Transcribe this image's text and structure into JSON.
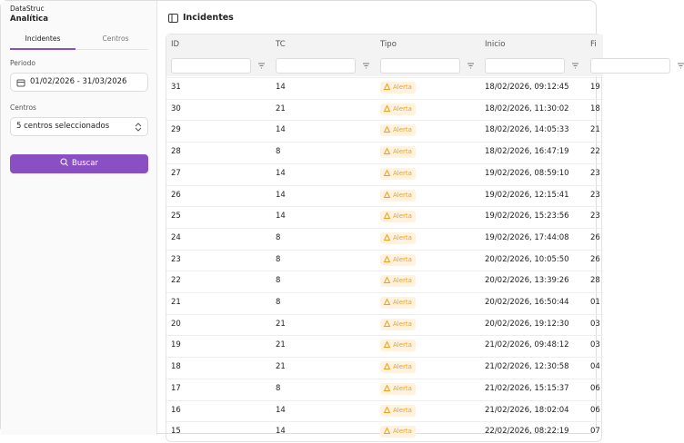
{
  "sidebar": {
    "brand": "DataStruc",
    "subtitle": "Analítica",
    "tabs": [
      "Incidentes",
      "Centros"
    ],
    "period_label": "Periodo",
    "period_value": "01/02/2026 - 31/03/2026",
    "centers_label": "Centros",
    "centers_value": "5 centros seleccionados",
    "button": "Buscar"
  },
  "main": {
    "title": "Incidentes"
  },
  "table": {
    "headers": [
      "ID",
      "TC",
      "Tipo",
      "Inicio",
      "Fi"
    ],
    "rows": [
      [
        31,
        14,
        "Alerta",
        "18/02/2026, 09:12:45",
        "19"
      ],
      [
        30,
        21,
        "Alerta",
        "18/02/2026, 11:30:02",
        "18"
      ],
      [
        29,
        14,
        "Alerta",
        "18/02/2026, 14:05:33",
        "21"
      ],
      [
        28,
        8,
        "Alerta",
        "18/02/2026, 16:47:19",
        "22"
      ],
      [
        27,
        14,
        "Alerta",
        "19/02/2026, 08:59:10",
        "23"
      ],
      [
        26,
        14,
        "Alerta",
        "19/02/2026, 12:15:41",
        "23"
      ],
      [
        25,
        14,
        "Alerta",
        "19/02/2026, 15:23:56",
        "23"
      ],
      [
        24,
        8,
        "Alerta",
        "19/02/2026, 17:44:08",
        "26"
      ],
      [
        23,
        8,
        "Alerta",
        "20/02/2026, 10:05:50",
        "26"
      ],
      [
        22,
        8,
        "Alerta",
        "20/02/2026, 13:39:26",
        "28"
      ],
      [
        21,
        8,
        "Alerta",
        "20/02/2026, 16:50:44",
        "01"
      ],
      [
        20,
        21,
        "Alerta",
        "20/02/2026, 19:12:30",
        "03"
      ],
      [
        19,
        21,
        "Alerta",
        "21/02/2026, 09:48:12",
        "03"
      ],
      [
        18,
        21,
        "Alerta",
        "21/02/2026, 12:30:58",
        "04"
      ],
      [
        17,
        8,
        "Alerta",
        "21/02/2026, 15:15:37",
        "06"
      ],
      [
        16,
        14,
        "Alerta",
        "21/02/2026, 18:02:04",
        "06"
      ],
      [
        15,
        14,
        "Alerta",
        "22/02/2026, 08:22:19",
        "07"
      ]
    ]
  }
}
